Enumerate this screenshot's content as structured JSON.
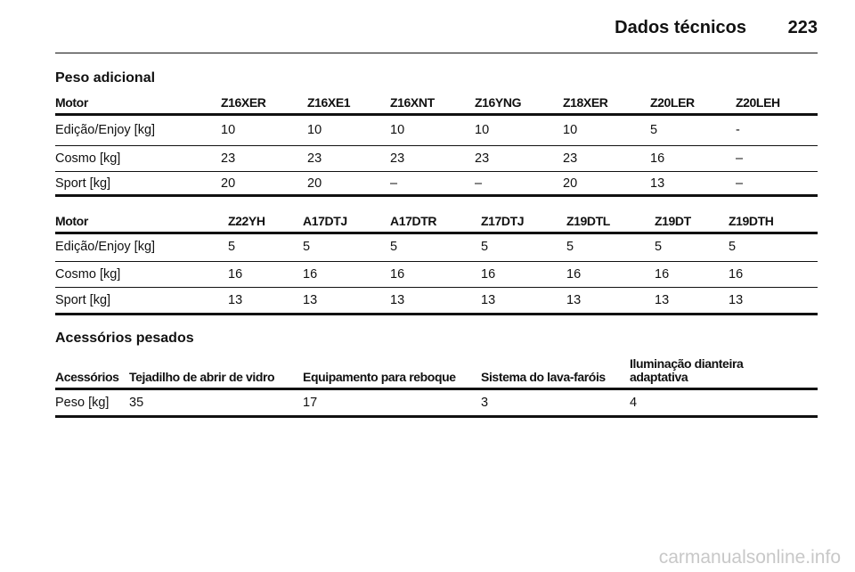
{
  "header": {
    "title": "Dados técnicos",
    "page_number": "223"
  },
  "sections": [
    {
      "title": "Peso adicional",
      "tables": [
        {
          "columns": [
            "Motor",
            "Z16XER",
            "Z16XE1",
            "Z16XNT",
            "Z16YNG",
            "Z18XER",
            "Z20LER",
            "Z20LEH"
          ],
          "rows": [
            [
              "Edição/Enjoy [kg]",
              10,
              10,
              10,
              10,
              10,
              5,
              "-"
            ],
            [
              "Cosmo [kg]",
              23,
              23,
              23,
              23,
              23,
              16,
              "–"
            ],
            [
              "Sport [kg]",
              20,
              20,
              "–",
              "–",
              20,
              13,
              "–"
            ]
          ]
        },
        {
          "columns": [
            "Motor",
            "Z22YH",
            "A17DTJ",
            "A17DTR",
            "Z17DTJ",
            "Z19DTL",
            "Z19DT",
            "Z19DTH"
          ],
          "rows": [
            [
              "Edição/Enjoy [kg]",
              5,
              5,
              5,
              5,
              5,
              5,
              5
            ],
            [
              "Cosmo [kg]",
              16,
              16,
              16,
              16,
              16,
              16,
              16
            ],
            [
              "Sport [kg]",
              13,
              13,
              13,
              13,
              13,
              13,
              13
            ]
          ]
        }
      ]
    },
    {
      "title": "Acessórios pesados",
      "tables": [
        {
          "columns": [
            "Acessórios",
            "Tejadilho de abrir de vidro",
            "Equipamento para reboque",
            "Sistema do lava-faróis",
            "Iluminação dianteira adaptativa"
          ],
          "rows": [
            [
              "Peso [kg]",
              35,
              17,
              3,
              4
            ]
          ]
        }
      ]
    }
  ],
  "watermark": "carmanualsonline.info"
}
